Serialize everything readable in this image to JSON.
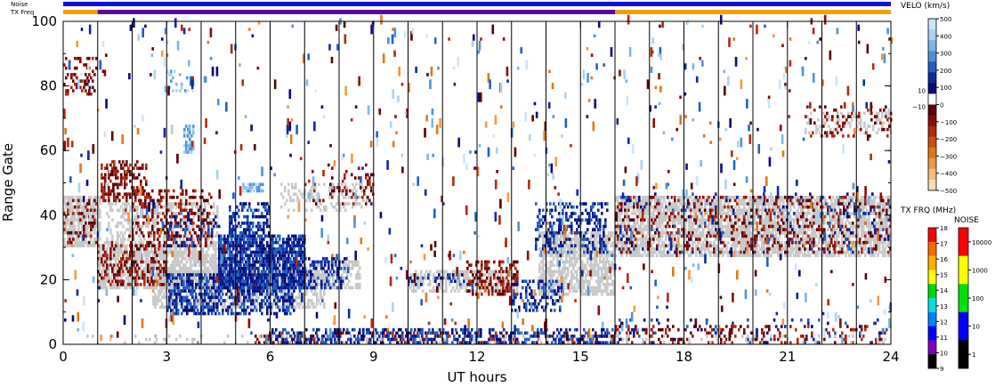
{
  "chart_data": {
    "type": "heatmap",
    "xlabel": "UT hours",
    "ylabel": "Range Gate",
    "xlim": [
      0,
      24
    ],
    "ylim": [
      0,
      100
    ],
    "x_ticks": [
      "0",
      "3",
      "6",
      "9",
      "12",
      "15",
      "18",
      "21",
      "24"
    ],
    "y_ticks": [
      "0",
      "20",
      "40",
      "60",
      "80",
      "100"
    ],
    "hour_gridlines": [
      1,
      2,
      3,
      4,
      5,
      6,
      7,
      8,
      9,
      10,
      11,
      12,
      13,
      14,
      15,
      16,
      17,
      18,
      19,
      20,
      21,
      22,
      23
    ],
    "status_bars": {
      "noise_label": "Noise",
      "txfreq_label": "TX Freq",
      "noise_color": "#1010e0",
      "txfreq_segments": [
        {
          "start": 0,
          "end": 1,
          "color": "#f0a000"
        },
        {
          "start": 1,
          "end": 16,
          "color": "#5a0a9a"
        },
        {
          "start": 16,
          "end": 24,
          "color": "#f0a000"
        }
      ]
    },
    "velocity_colorbar": {
      "title": "VELO (km/s)",
      "labels": [
        "500",
        "400",
        "300",
        "200",
        "100",
        "0",
        "−100",
        "−200",
        "−300",
        "−400",
        "−500"
      ],
      "side_labels": [
        "10",
        "−10"
      ],
      "colors": [
        "#c9e6fb",
        "#a8d2f3",
        "#7cb6e8",
        "#4b93d8",
        "#2060c0",
        "#0c2aa0",
        "#0a0a7a",
        "#ffffff",
        "#5a0000",
        "#8a0c0c",
        "#b02a10",
        "#cc5010",
        "#e07818",
        "#f09a40",
        "#f6bc78",
        "#fbdcb8"
      ]
    },
    "txfreq_colorbar": {
      "title": "TX FRQ (MHz)",
      "labels": [
        "18",
        "17",
        "16",
        "15",
        "14",
        "13",
        "12",
        "11",
        "10",
        "9"
      ],
      "colors": [
        "#ff0000",
        "#ff6a00",
        "#ffb000",
        "#ffff00",
        "#00d800",
        "#00e0e0",
        "#0080ff",
        "#0000ff",
        "#8000c0",
        "#000000"
      ]
    },
    "noise_colorbar": {
      "title": "NOISE",
      "labels": [
        "10000",
        "1000",
        "100",
        "10",
        "1"
      ],
      "colors": [
        "#ff0000",
        "#ffff00",
        "#00e000",
        "#0000ff",
        "#000000"
      ]
    },
    "ground_scatter_color": "#c8c8c8",
    "regions": [
      {
        "kind": "gs",
        "x0": 0.0,
        "x1": 1.1,
        "y0": 30,
        "y1": 46,
        "density": 0.75
      },
      {
        "kind": "gs",
        "x0": 1.0,
        "x1": 4.8,
        "y0": 17,
        "y1": 31,
        "density": 0.7
      },
      {
        "kind": "gs",
        "x0": 1.2,
        "x1": 4.5,
        "y0": 30,
        "y1": 44,
        "density": 0.35
      },
      {
        "kind": "gs",
        "x0": 2.6,
        "x1": 7.6,
        "y0": 11,
        "y1": 23,
        "density": 0.6
      },
      {
        "kind": "gs",
        "x0": 6.0,
        "x1": 8.6,
        "y0": 17,
        "y1": 26,
        "density": 0.4
      },
      {
        "kind": "gs",
        "x0": 10.0,
        "x1": 13.2,
        "y0": 16,
        "y1": 23,
        "density": 0.55
      },
      {
        "kind": "gs",
        "x0": 13.8,
        "x1": 16.0,
        "y0": 15,
        "y1": 35,
        "density": 0.7
      },
      {
        "kind": "gs",
        "x0": 16.0,
        "x1": 24.0,
        "y0": 27,
        "y1": 46,
        "density": 0.7
      },
      {
        "kind": "gs",
        "x0": 6.3,
        "x1": 8.8,
        "y0": 41,
        "y1": 50,
        "density": 0.25
      },
      {
        "kind": "gs",
        "x0": 21.5,
        "x1": 24.0,
        "y0": 65,
        "y1": 72,
        "density": 0.25
      },
      {
        "kind": "neg",
        "x0": 0.0,
        "x1": 1.0,
        "y0": 31,
        "y1": 45,
        "density": 0.18
      },
      {
        "kind": "neg",
        "x0": 1.0,
        "x1": 3.0,
        "y0": 18,
        "y1": 31,
        "density": 0.35
      },
      {
        "kind": "neg",
        "x0": 1.1,
        "x1": 2.4,
        "y0": 44,
        "y1": 57,
        "density": 0.4
      },
      {
        "kind": "neg",
        "x0": 2.0,
        "x1": 4.3,
        "y0": 30,
        "y1": 48,
        "density": 0.28
      },
      {
        "kind": "neg",
        "x0": 16.0,
        "x1": 24.0,
        "y0": 28,
        "y1": 46,
        "density": 0.16
      },
      {
        "kind": "neg",
        "x0": 11.7,
        "x1": 13.2,
        "y0": 15,
        "y1": 26,
        "density": 0.4
      },
      {
        "kind": "neg",
        "x0": 0.0,
        "x1": 1.0,
        "y0": 77,
        "y1": 89,
        "density": 0.3
      },
      {
        "kind": "neg",
        "x0": 7.0,
        "x1": 9.0,
        "y0": 43,
        "y1": 56,
        "density": 0.12
      },
      {
        "kind": "neg",
        "x0": 5.5,
        "x1": 16.0,
        "y0": 0,
        "y1": 4,
        "density": 0.22
      },
      {
        "kind": "neg",
        "x0": 16.0,
        "x1": 24.0,
        "y0": 0,
        "y1": 6,
        "density": 0.2
      },
      {
        "kind": "neg",
        "x0": 21.5,
        "x1": 24.0,
        "y0": 64,
        "y1": 74,
        "density": 0.15
      },
      {
        "kind": "pos",
        "x0": 3.0,
        "x1": 6.7,
        "y0": 9,
        "y1": 22,
        "density": 0.55
      },
      {
        "kind": "pos",
        "x0": 4.5,
        "x1": 7.0,
        "y0": 17,
        "y1": 34,
        "density": 0.82
      },
      {
        "kind": "pos",
        "x0": 4.8,
        "x1": 6.0,
        "y0": 33,
        "y1": 44,
        "density": 0.45
      },
      {
        "kind": "pos",
        "x0": 3.0,
        "x1": 4.6,
        "y0": 30,
        "y1": 40,
        "density": 0.18
      },
      {
        "kind": "pos",
        "x0": 7.0,
        "x1": 8.3,
        "y0": 17,
        "y1": 27,
        "density": 0.35
      },
      {
        "kind": "pos",
        "x0": 13.7,
        "x1": 15.8,
        "y0": 28,
        "y1": 44,
        "density": 0.35
      },
      {
        "kind": "pos",
        "x0": 13.0,
        "x1": 14.5,
        "y0": 10,
        "y1": 20,
        "density": 0.35
      },
      {
        "kind": "pos",
        "x0": 6.0,
        "x1": 16.0,
        "y0": 0,
        "y1": 5,
        "density": 0.38
      },
      {
        "kind": "pos",
        "x0": 10.0,
        "x1": 11.8,
        "y0": 18,
        "y1": 22,
        "density": 0.25
      },
      {
        "kind": "pos",
        "x0": 16.0,
        "x1": 24.0,
        "y0": 0,
        "y1": 8,
        "density": 0.05
      },
      {
        "kind": "pos",
        "x0": 16.0,
        "x1": 24.0,
        "y0": 28,
        "y1": 47,
        "density": 0.05
      },
      {
        "kind": "lpos",
        "x0": 5.2,
        "x1": 5.8,
        "y0": 47,
        "y1": 50,
        "density": 0.7
      },
      {
        "kind": "lpos",
        "x0": 3.5,
        "x1": 3.8,
        "y0": 59,
        "y1": 68,
        "density": 0.6
      },
      {
        "kind": "lpos",
        "x0": 3.0,
        "x1": 3.6,
        "y0": 78,
        "y1": 85,
        "density": 0.15
      },
      {
        "kind": "gs",
        "x0": 0.0,
        "x1": 24.0,
        "y0": 0,
        "y1": 3,
        "density": 0.08
      }
    ],
    "sparse_echoes": {
      "x0": 0,
      "x1": 24,
      "y0": 0,
      "y1": 100,
      "count": 850
    }
  }
}
